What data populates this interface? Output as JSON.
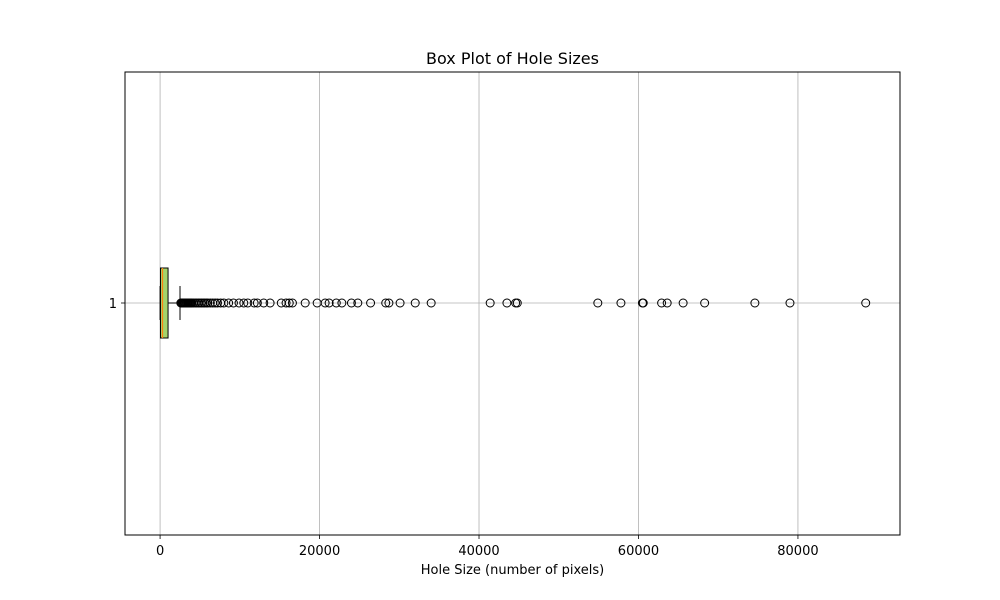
{
  "chart_data": {
    "type": "box",
    "orientation": "horizontal",
    "title": "Box Plot of Hole Sizes",
    "xlabel": "Hole Size (number of pixels)",
    "ylabel": "",
    "xlim": [
      -4400,
      92800
    ],
    "xticks": [
      0,
      20000,
      40000,
      60000,
      80000
    ],
    "xtick_labels": [
      "0",
      "20000",
      "40000",
      "60000",
      "80000"
    ],
    "ytick_labels": [
      "1"
    ],
    "grid": true,
    "box_fill": "#a5d36a",
    "median_color": "#ff7f0e",
    "series": [
      {
        "category": "1",
        "whisker_low": 0,
        "q1": 50,
        "median": 300,
        "q3": 1000,
        "whisker_high": 2500,
        "outliers": [
          2600,
          2700,
          2800,
          2900,
          3000,
          3100,
          3200,
          3300,
          3400,
          3500,
          3600,
          3700,
          3800,
          3900,
          4000,
          4200,
          4400,
          4600,
          4800,
          5000,
          5200,
          5400,
          5600,
          5800,
          6000,
          6300,
          6600,
          6900,
          7200,
          7600,
          8000,
          8600,
          9200,
          9900,
          10500,
          11000,
          11800,
          12200,
          13000,
          13800,
          15200,
          15800,
          16200,
          16600,
          18200,
          19700,
          20700,
          21200,
          22100,
          22800,
          24000,
          24800,
          26400,
          28300,
          28700,
          30100,
          32000,
          34000,
          41400,
          43500,
          44600,
          44800,
          54900,
          57800,
          60500,
          60600,
          62900,
          63600,
          65600,
          68300,
          74600,
          79000,
          88500
        ]
      }
    ]
  }
}
